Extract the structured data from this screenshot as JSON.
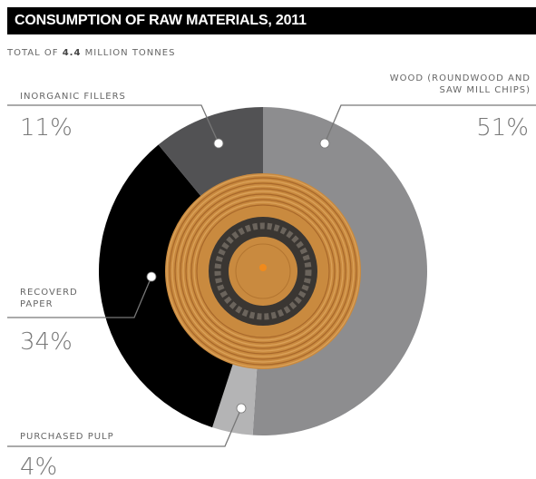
{
  "chart_data": {
    "type": "pie",
    "title": "CONSUMPTION OF RAW MATERIALS, 2011",
    "subtitle": [
      "TOTAL OF",
      "4.4",
      "MILLION TONNES"
    ],
    "categories": [
      "WOOD (ROUNDWOOD AND SAW MILL CHIPS)",
      "PURCHASED PULP",
      "RECOVERD PAPER",
      "INORGANIC FILLERS"
    ],
    "values": [
      51,
      4,
      34,
      11
    ],
    "value_labels": [
      "51%",
      "4%",
      "34%",
      "11%"
    ],
    "colors": [
      "#8d8d8f",
      "#b4b4b5",
      "#000000",
      "#525254"
    ]
  }
}
